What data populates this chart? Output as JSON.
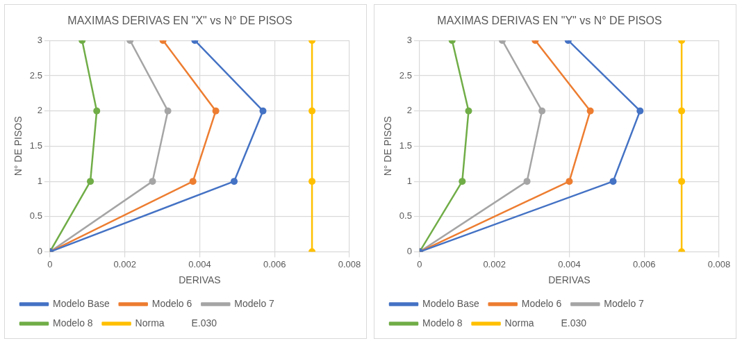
{
  "chart_data": [
    {
      "type": "line",
      "title": "MAXIMAS DERIVAS EN \"X\" vs N° DE PISOS",
      "xlabel": "DERIVAS",
      "ylabel": "N° DE PISOS",
      "xlim": [
        0,
        0.008
      ],
      "xticks": [
        0,
        0.002,
        0.004,
        0.006,
        0.008
      ],
      "ylim": [
        0,
        3
      ],
      "yticks": [
        0,
        0.5,
        1,
        1.5,
        2,
        2.5,
        3
      ],
      "grid": true,
      "legend": "bottom",
      "marker": "circle",
      "series": [
        {
          "name": "Modelo Base",
          "color": "#4472c4",
          "x": [
            0,
            0.00492,
            0.00569,
            0.00387
          ],
          "values": [
            0,
            1,
            2,
            3
          ]
        },
        {
          "name": "Modelo 6",
          "color": "#ed7d31",
          "x": [
            0,
            0.00382,
            0.00443,
            0.00302
          ],
          "values": [
            0,
            1,
            2,
            3
          ]
        },
        {
          "name": "Modelo 7",
          "color": "#a5a5a5",
          "x": [
            0,
            0.00274,
            0.00315,
            0.00214
          ],
          "values": [
            0,
            1,
            2,
            3
          ]
        },
        {
          "name": "Modelo 8",
          "color": "#70ad47",
          "x": [
            0,
            0.00108,
            0.00125,
            0.00086
          ],
          "values": [
            0,
            1,
            2,
            3
          ]
        },
        {
          "name": "Norma          E.030",
          "color": "#ffc000",
          "x": [
            0.007,
            0.007,
            0.007,
            0.007
          ],
          "values": [
            0,
            1,
            2,
            3
          ]
        }
      ]
    },
    {
      "type": "line",
      "title": "MAXIMAS DERIVAS EN \"Y\" vs N° DE PISOS",
      "xlabel": "DERIVAS",
      "ylabel": "N° DE PISOS",
      "xlim": [
        0,
        0.008
      ],
      "xticks": [
        0,
        0.002,
        0.004,
        0.006,
        0.008
      ],
      "ylim": [
        0,
        3
      ],
      "yticks": [
        0,
        0.5,
        1,
        1.5,
        2,
        2.5,
        3
      ],
      "grid": true,
      "legend": "bottom",
      "marker": "circle",
      "series": [
        {
          "name": "Modelo Base",
          "color": "#4472c4",
          "x": [
            0,
            0.00517,
            0.00589,
            0.00397
          ],
          "values": [
            0,
            1,
            2,
            3
          ]
        },
        {
          "name": "Modelo 6",
          "color": "#ed7d31",
          "x": [
            0,
            0.004,
            0.00456,
            0.00309
          ],
          "values": [
            0,
            1,
            2,
            3
          ]
        },
        {
          "name": "Modelo 7",
          "color": "#a5a5a5",
          "x": [
            0,
            0.00287,
            0.00327,
            0.00221
          ],
          "values": [
            0,
            1,
            2,
            3
          ]
        },
        {
          "name": "Modelo 8",
          "color": "#70ad47",
          "x": [
            0,
            0.00114,
            0.00131,
            0.00087
          ],
          "values": [
            0,
            1,
            2,
            3
          ]
        },
        {
          "name": "Norma          E.030",
          "color": "#ffc000",
          "x": [
            0.007,
            0.007,
            0.007,
            0.007
          ],
          "values": [
            0,
            1,
            2,
            3
          ]
        }
      ]
    }
  ]
}
